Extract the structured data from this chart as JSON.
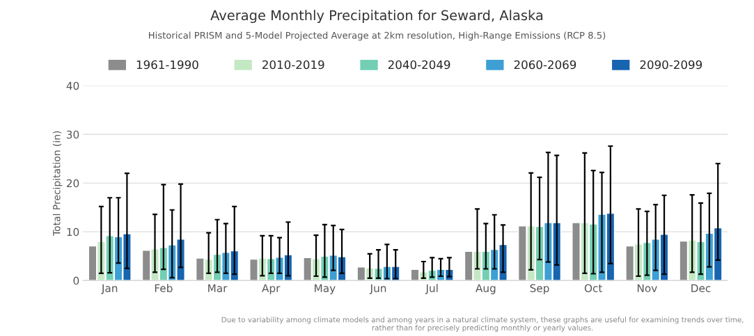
{
  "chart_data": {
    "type": "bar",
    "title": "Average Monthly Precipitation for Seward, Alaska",
    "subtitle": "Historical PRISM and 5-Model Projected Average at 2km resolution, High-Range Emissions (RCP 8.5)",
    "ylabel": "Total Precipitation (in)",
    "categories": [
      "Jan",
      "Feb",
      "Mar",
      "Apr",
      "May",
      "Jun",
      "Jul",
      "Aug",
      "Sep",
      "Oct",
      "Nov",
      "Dec"
    ],
    "series": [
      {
        "name": "1961-1990",
        "color": "#8c8c8c",
        "values": [
          7.1,
          6.2,
          4.6,
          4.4,
          4.7,
          2.8,
          2.3,
          6.0,
          11.2,
          11.9,
          7.1,
          8.1
        ]
      },
      {
        "name": "2010-2019",
        "color": "#c4e8c4",
        "values": [
          8.0,
          6.5,
          4.4,
          4.6,
          4.5,
          2.6,
          1.8,
          6.0,
          11.2,
          11.9,
          7.5,
          8.3
        ],
        "errors": [
          [
            1.5,
            15.2
          ],
          [
            1.7,
            13.6
          ],
          [
            1.5,
            9.8
          ],
          [
            1.0,
            9.2
          ],
          [
            0.9,
            9.3
          ],
          [
            0.5,
            5.5
          ],
          [
            0.5,
            3.9
          ],
          [
            2.4,
            14.7
          ],
          [
            2.2,
            22.1
          ],
          [
            1.5,
            26.2
          ],
          [
            0.9,
            14.7
          ],
          [
            1.7,
            17.6
          ]
        ]
      },
      {
        "name": "2040-2049",
        "color": "#72cfb3",
        "values": [
          9.2,
          6.8,
          5.4,
          4.5,
          5.0,
          2.5,
          2.1,
          6.0,
          11.1,
          11.6,
          7.8,
          8.0
        ],
        "errors": [
          [
            1.6,
            17.0
          ],
          [
            2.3,
            19.7
          ],
          [
            1.7,
            12.5
          ],
          [
            1.5,
            9.2
          ],
          [
            0.7,
            11.5
          ],
          [
            0.5,
            6.3
          ],
          [
            0.7,
            4.7
          ],
          [
            2.4,
            11.7
          ],
          [
            4.3,
            21.2
          ],
          [
            1.4,
            22.6
          ],
          [
            1.1,
            14.2
          ],
          [
            1.3,
            15.9
          ]
        ]
      },
      {
        "name": "2060-2069",
        "color": "#3d9fd3",
        "values": [
          9.0,
          7.3,
          5.8,
          4.8,
          5.2,
          2.9,
          2.3,
          6.4,
          11.9,
          13.6,
          8.5,
          9.7
        ],
        "errors": [
          [
            3.6,
            17.0
          ],
          [
            0.6,
            14.5
          ],
          [
            1.5,
            11.7
          ],
          [
            1.5,
            8.8
          ],
          [
            2.1,
            11.3
          ],
          [
            0.4,
            7.4
          ],
          [
            0.9,
            4.5
          ],
          [
            2.4,
            13.5
          ],
          [
            3.8,
            26.3
          ],
          [
            1.7,
            22.2
          ],
          [
            2.1,
            15.6
          ],
          [
            2.8,
            17.9
          ]
        ]
      },
      {
        "name": "2090-2099",
        "color": "#1764b0",
        "values": [
          9.6,
          8.5,
          6.1,
          5.3,
          4.9,
          2.9,
          2.3,
          7.4,
          11.9,
          13.8,
          9.5,
          10.8
        ],
        "errors": [
          [
            2.5,
            22.0
          ],
          [
            2.7,
            19.8
          ],
          [
            1.3,
            15.2
          ],
          [
            1.0,
            12.0
          ],
          [
            1.5,
            10.5
          ],
          [
            0.4,
            6.3
          ],
          [
            0.8,
            4.7
          ],
          [
            1.7,
            11.4
          ],
          [
            3.2,
            25.7
          ],
          [
            3.5,
            27.6
          ],
          [
            1.3,
            17.5
          ],
          [
            4.2,
            24.0
          ]
        ]
      }
    ],
    "ylim": [
      0,
      40
    ],
    "yticks": [
      0,
      10,
      20,
      30,
      40
    ],
    "grid": "y",
    "legend": "top",
    "annotations": [
      "Due to variability among climate models and among years in a natural climate system, these graphs are useful for examining trends over time, rather than for precisely predicting monthly or yearly values."
    ]
  }
}
